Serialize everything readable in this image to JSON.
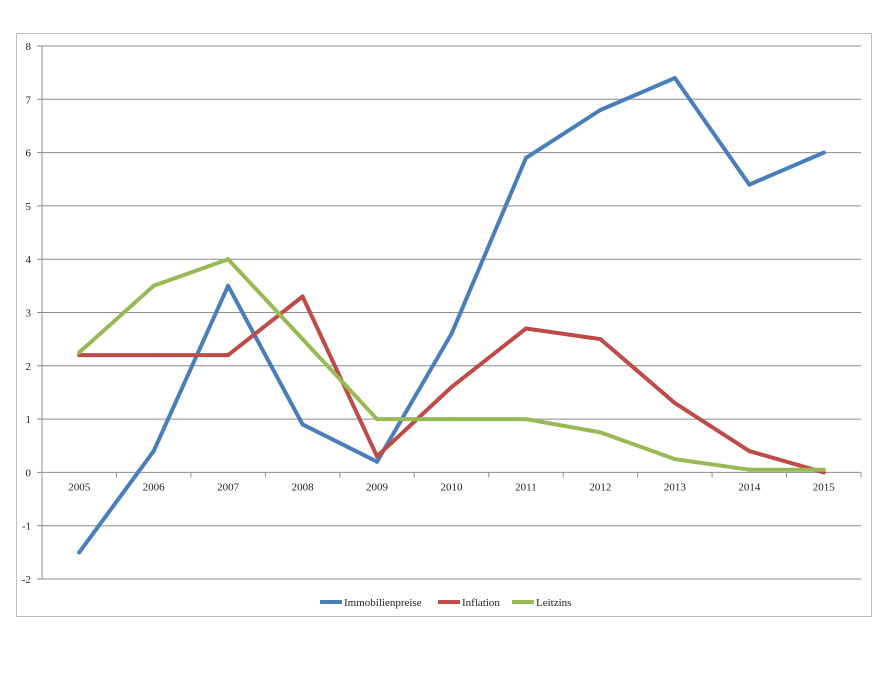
{
  "chart_data": {
    "type": "line",
    "title": "",
    "xlabel": "",
    "ylabel": "",
    "ylim": [
      -2,
      8
    ],
    "yticks": [
      -2,
      -1,
      0,
      1,
      2,
      3,
      4,
      5,
      6,
      7,
      8
    ],
    "ytick_labels": [
      "-2",
      "-1",
      "0",
      "1",
      "2",
      "3",
      "4",
      "5",
      "6",
      "7",
      "8"
    ],
    "grid": true,
    "legend": "bottom",
    "categories": [
      "2005",
      "2006",
      "2007",
      "2008",
      "2009",
      "2010",
      "2011",
      "2012",
      "2013",
      "2014",
      "2015"
    ],
    "series": [
      {
        "name": "Immobilienpreise",
        "color": "#4a7ebb",
        "values": [
          -1.5,
          0.4,
          3.5,
          0.9,
          0.2,
          2.6,
          5.9,
          6.8,
          7.4,
          5.4,
          6.0
        ]
      },
      {
        "name": "Inflation",
        "color": "#be4b48",
        "values": [
          2.2,
          2.2,
          2.2,
          3.3,
          0.3,
          1.6,
          2.7,
          2.5,
          1.3,
          0.4,
          0.0
        ]
      },
      {
        "name": "Leitzins",
        "color": "#98b954",
        "values": [
          2.25,
          3.5,
          4.0,
          2.5,
          1.0,
          1.0,
          1.0,
          0.75,
          0.25,
          0.05,
          0.05
        ]
      }
    ]
  }
}
